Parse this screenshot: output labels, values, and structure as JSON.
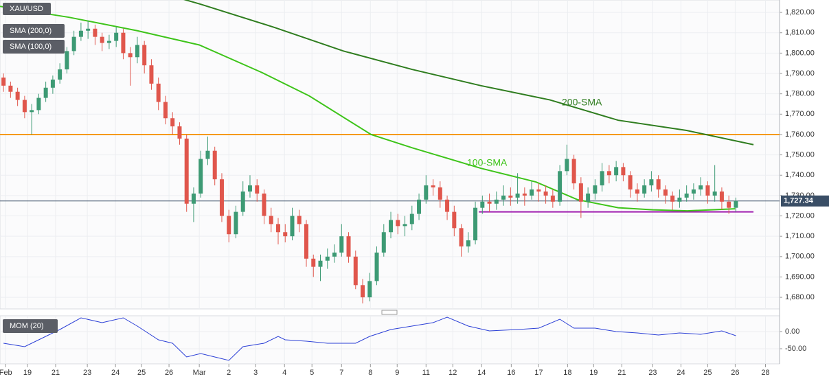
{
  "chart_data": [
    {
      "type": "candlestick",
      "title": "XAU/USD",
      "up_color": "#3d9a74",
      "down_color": "#e0564c",
      "candles": [
        [
          1788,
          1790,
          1781,
          1784
        ],
        [
          1784,
          1786,
          1778,
          1781
        ],
        [
          1781,
          1783,
          1774,
          1777
        ],
        [
          1777,
          1779,
          1768,
          1771
        ],
        [
          1771,
          1775,
          1760,
          1772
        ],
        [
          1772,
          1780,
          1770,
          1778
        ],
        [
          1778,
          1786,
          1776,
          1783
        ],
        [
          1783,
          1789,
          1780,
          1787
        ],
        [
          1787,
          1795,
          1785,
          1792
        ],
        [
          1792,
          1803,
          1790,
          1801
        ],
        [
          1801,
          1811,
          1799,
          1808
        ],
        [
          1808,
          1815,
          1806,
          1811
        ],
        [
          1811,
          1816,
          1807,
          1812
        ],
        [
          1812,
          1814,
          1804,
          1808
        ],
        [
          1808,
          1810,
          1801,
          1805
        ],
        [
          1805,
          1809,
          1802,
          1806
        ],
        [
          1806,
          1813,
          1803,
          1810
        ],
        [
          1810,
          1812,
          1797,
          1800
        ],
        [
          1800,
          1803,
          1784,
          1798
        ],
        [
          1798,
          1808,
          1795,
          1804
        ],
        [
          1804,
          1806,
          1790,
          1794
        ],
        [
          1794,
          1797,
          1782,
          1785
        ],
        [
          1785,
          1788,
          1772,
          1776
        ],
        [
          1776,
          1779,
          1765,
          1768
        ],
        [
          1768,
          1771,
          1760,
          1764
        ],
        [
          1764,
          1766,
          1755,
          1758
        ],
        [
          1758,
          1760,
          1722,
          1726
        ],
        [
          1726,
          1734,
          1717,
          1731
        ],
        [
          1731,
          1752,
          1729,
          1748
        ],
        [
          1748,
          1759,
          1745,
          1752
        ],
        [
          1752,
          1754,
          1735,
          1738
        ],
        [
          1738,
          1741,
          1717,
          1720
        ],
        [
          1720,
          1723,
          1707,
          1711
        ],
        [
          1711,
          1725,
          1709,
          1722
        ],
        [
          1722,
          1737,
          1720,
          1732
        ],
        [
          1732,
          1740,
          1729,
          1735
        ],
        [
          1735,
          1738,
          1727,
          1731
        ],
        [
          1731,
          1733,
          1716,
          1720
        ],
        [
          1720,
          1724,
          1712,
          1716
        ],
        [
          1716,
          1719,
          1706,
          1712
        ],
        [
          1712,
          1716,
          1707,
          1710
        ],
        [
          1710,
          1724,
          1708,
          1720
        ],
        [
          1720,
          1723,
          1712,
          1716
        ],
        [
          1716,
          1718,
          1695,
          1699
        ],
        [
          1699,
          1701,
          1690,
          1695
        ],
        [
          1695,
          1701,
          1688,
          1698
        ],
        [
          1698,
          1704,
          1694,
          1700
        ],
        [
          1700,
          1706,
          1697,
          1702
        ],
        [
          1702,
          1716,
          1700,
          1710
        ],
        [
          1710,
          1712,
          1697,
          1700
        ],
        [
          1700,
          1703,
          1684,
          1686
        ],
        [
          1686,
          1689,
          1677,
          1680
        ],
        [
          1680,
          1692,
          1678,
          1688
        ],
        [
          1688,
          1705,
          1686,
          1702
        ],
        [
          1702,
          1716,
          1700,
          1712
        ],
        [
          1712,
          1722,
          1709,
          1718
        ],
        [
          1718,
          1721,
          1711,
          1715
        ],
        [
          1715,
          1720,
          1710,
          1716
        ],
        [
          1716,
          1725,
          1713,
          1721
        ],
        [
          1721,
          1731,
          1718,
          1728
        ],
        [
          1728,
          1740,
          1726,
          1735
        ],
        [
          1735,
          1738,
          1730,
          1734
        ],
        [
          1734,
          1737,
          1724,
          1728
        ],
        [
          1728,
          1730,
          1718,
          1722
        ],
        [
          1722,
          1725,
          1710,
          1714
        ],
        [
          1714,
          1716,
          1700,
          1705
        ],
        [
          1705,
          1712,
          1702,
          1708
        ],
        [
          1708,
          1727,
          1706,
          1724
        ],
        [
          1724,
          1730,
          1721,
          1727
        ],
        [
          1727,
          1731,
          1722,
          1726
        ],
        [
          1726,
          1732,
          1723,
          1728
        ],
        [
          1728,
          1735,
          1725,
          1730
        ],
        [
          1730,
          1734,
          1725,
          1729
        ],
        [
          1729,
          1741,
          1726,
          1731
        ],
        [
          1731,
          1734,
          1725,
          1730
        ],
        [
          1730,
          1737,
          1728,
          1733
        ],
        [
          1733,
          1736,
          1727,
          1732
        ],
        [
          1732,
          1735,
          1726,
          1730
        ],
        [
          1730,
          1733,
          1724,
          1727
        ],
        [
          1727,
          1745,
          1725,
          1742
        ],
        [
          1742,
          1755,
          1740,
          1748
        ],
        [
          1748,
          1750,
          1733,
          1736
        ],
        [
          1736,
          1739,
          1719,
          1727
        ],
        [
          1727,
          1734,
          1724,
          1731
        ],
        [
          1731,
          1738,
          1728,
          1735
        ],
        [
          1735,
          1746,
          1732,
          1742
        ],
        [
          1742,
          1745,
          1736,
          1740
        ],
        [
          1740,
          1747,
          1737,
          1744
        ],
        [
          1744,
          1746,
          1737,
          1740
        ],
        [
          1740,
          1742,
          1729,
          1733
        ],
        [
          1733,
          1736,
          1727,
          1731
        ],
        [
          1731,
          1738,
          1729,
          1735
        ],
        [
          1735,
          1742,
          1732,
          1738
        ],
        [
          1738,
          1740,
          1729,
          1733
        ],
        [
          1733,
          1735,
          1726,
          1730
        ],
        [
          1730,
          1732,
          1723,
          1727
        ],
        [
          1727,
          1733,
          1724,
          1729
        ],
        [
          1729,
          1735,
          1727,
          1731
        ],
        [
          1731,
          1736,
          1728,
          1733
        ],
        [
          1733,
          1739,
          1730,
          1735
        ],
        [
          1735,
          1737,
          1726,
          1730
        ],
        [
          1730,
          1745,
          1727,
          1732
        ],
        [
          1732,
          1734,
          1723,
          1727
        ],
        [
          1727,
          1730,
          1721,
          1724
        ],
        [
          1724,
          1729,
          1722,
          1727.34
        ]
      ],
      "series": [
        {
          "name": "SMA (200,0)",
          "color": "#2f7d1f",
          "x": [
            25,
            28,
            38.5,
            48.3,
            58,
            67.8,
            77.6,
            87.3,
            97,
            106.5
          ],
          "values": [
            1827,
            1824,
            1812.6,
            1801,
            1792,
            1784,
            1777,
            1767,
            1762,
            1755
          ]
        },
        {
          "name": "SMA (100,0)",
          "color": "#3ec41a",
          "x": [
            -0.5,
            9.3,
            19,
            27.8,
            36.6,
            43.4,
            52.2,
            58,
            67.8,
            75.6,
            81.5,
            87.3,
            92.2,
            97.1,
            103.9
          ],
          "values": [
            1823,
            1817.6,
            1811,
            1804,
            1790.6,
            1779,
            1760,
            1753.5,
            1743.4,
            1736.7,
            1728,
            1724,
            1723,
            1722.5,
            1723.5
          ]
        }
      ],
      "annotations": [
        "200-SMA",
        "100-SMA"
      ],
      "levels": [
        {
          "value": 1760,
          "color": "#f59a00"
        },
        {
          "value": 1722,
          "color": "#a020b0",
          "x_from": 67.5,
          "x_to": 106.5
        }
      ],
      "last_price": {
        "value": 1727.34,
        "label": "1,727.34",
        "color": "#3a4e66"
      },
      "xlim": [
        -0.5,
        110.2
      ],
      "xticks": [
        {
          "value": 0.3,
          "label": "Feb"
        },
        {
          "value": 3.4,
          "label": "19"
        },
        {
          "value": 7.4,
          "label": "21"
        },
        {
          "value": 11.9,
          "label": "23"
        },
        {
          "value": 15.9,
          "label": "24"
        },
        {
          "value": 19.6,
          "label": "25"
        },
        {
          "value": 23.5,
          "label": "26"
        },
        {
          "value": 27.8,
          "label": "Mar"
        },
        {
          "value": 32,
          "label": "2"
        },
        {
          "value": 35.8,
          "label": "3"
        },
        {
          "value": 39.9,
          "label": "4"
        },
        {
          "value": 43.8,
          "label": "5"
        },
        {
          "value": 48,
          "label": "7"
        },
        {
          "value": 52.1,
          "label": "8"
        },
        {
          "value": 55.9,
          "label": "9"
        },
        {
          "value": 60,
          "label": "11"
        },
        {
          "value": 63.8,
          "label": "12"
        },
        {
          "value": 67.9,
          "label": "14"
        },
        {
          "value": 72.1,
          "label": "16"
        },
        {
          "value": 76,
          "label": "17"
        },
        {
          "value": 80.1,
          "label": "18"
        },
        {
          "value": 83.8,
          "label": "19"
        },
        {
          "value": 87.8,
          "label": "21"
        },
        {
          "value": 92.2,
          "label": "23"
        },
        {
          "value": 96.2,
          "label": "24"
        },
        {
          "value": 100,
          "label": "25"
        },
        {
          "value": 103.9,
          "label": "26"
        },
        {
          "value": 108.2,
          "label": "28"
        }
      ],
      "ylim": [
        1674.3,
        1826.1
      ],
      "yticks": [
        {
          "value": 1680,
          "label": "1,680.00"
        },
        {
          "value": 1690,
          "label": "1,690.00"
        },
        {
          "value": 1700,
          "label": "1,700.00"
        },
        {
          "value": 1710,
          "label": "1,710.00"
        },
        {
          "value": 1720,
          "label": "1,720.00"
        },
        {
          "value": 1730,
          "label": "1,730.00"
        },
        {
          "value": 1740,
          "label": "1,740.00"
        },
        {
          "value": 1750,
          "label": "1,750.00"
        },
        {
          "value": 1760,
          "label": "1,760.00"
        },
        {
          "value": 1770,
          "label": "1,770.00"
        },
        {
          "value": 1780,
          "label": "1,780.00"
        },
        {
          "value": 1790,
          "label": "1,790.00"
        },
        {
          "value": 1800,
          "label": "1,800.00"
        },
        {
          "value": 1810,
          "label": "1,810.00"
        },
        {
          "value": 1820,
          "label": "1,820.00"
        }
      ],
      "grid": true
    },
    {
      "type": "line",
      "series": [
        {
          "name": "MOM (20)",
          "color": "#2b3fd6",
          "x": [
            0,
            3,
            5,
            8,
            11,
            14,
            17,
            19,
            22,
            24,
            26,
            28,
            30,
            32,
            34,
            37,
            39,
            40,
            43,
            46,
            50,
            52,
            55,
            58,
            61,
            63,
            66,
            69,
            73,
            76,
            79,
            81,
            84,
            87,
            90,
            93,
            96,
            99,
            102,
            104
          ],
          "values": [
            -34,
            -44,
            -24,
            6,
            40,
            26,
            40,
            16,
            -24,
            -34,
            -74,
            -64,
            -74,
            -84,
            -44,
            -34,
            -14,
            -24,
            -28,
            -34,
            -34,
            -14,
            6,
            16,
            26,
            42,
            16,
            2,
            6,
            10,
            36,
            10,
            10,
            0,
            -4,
            -10,
            -4,
            -8,
            2,
            -12
          ]
        }
      ],
      "ylim": [
        -94,
        46
      ],
      "yticks": [
        {
          "value": 0,
          "label": "0.00"
        },
        {
          "value": -50,
          "label": "-50.00"
        }
      ],
      "grid": true
    }
  ]
}
